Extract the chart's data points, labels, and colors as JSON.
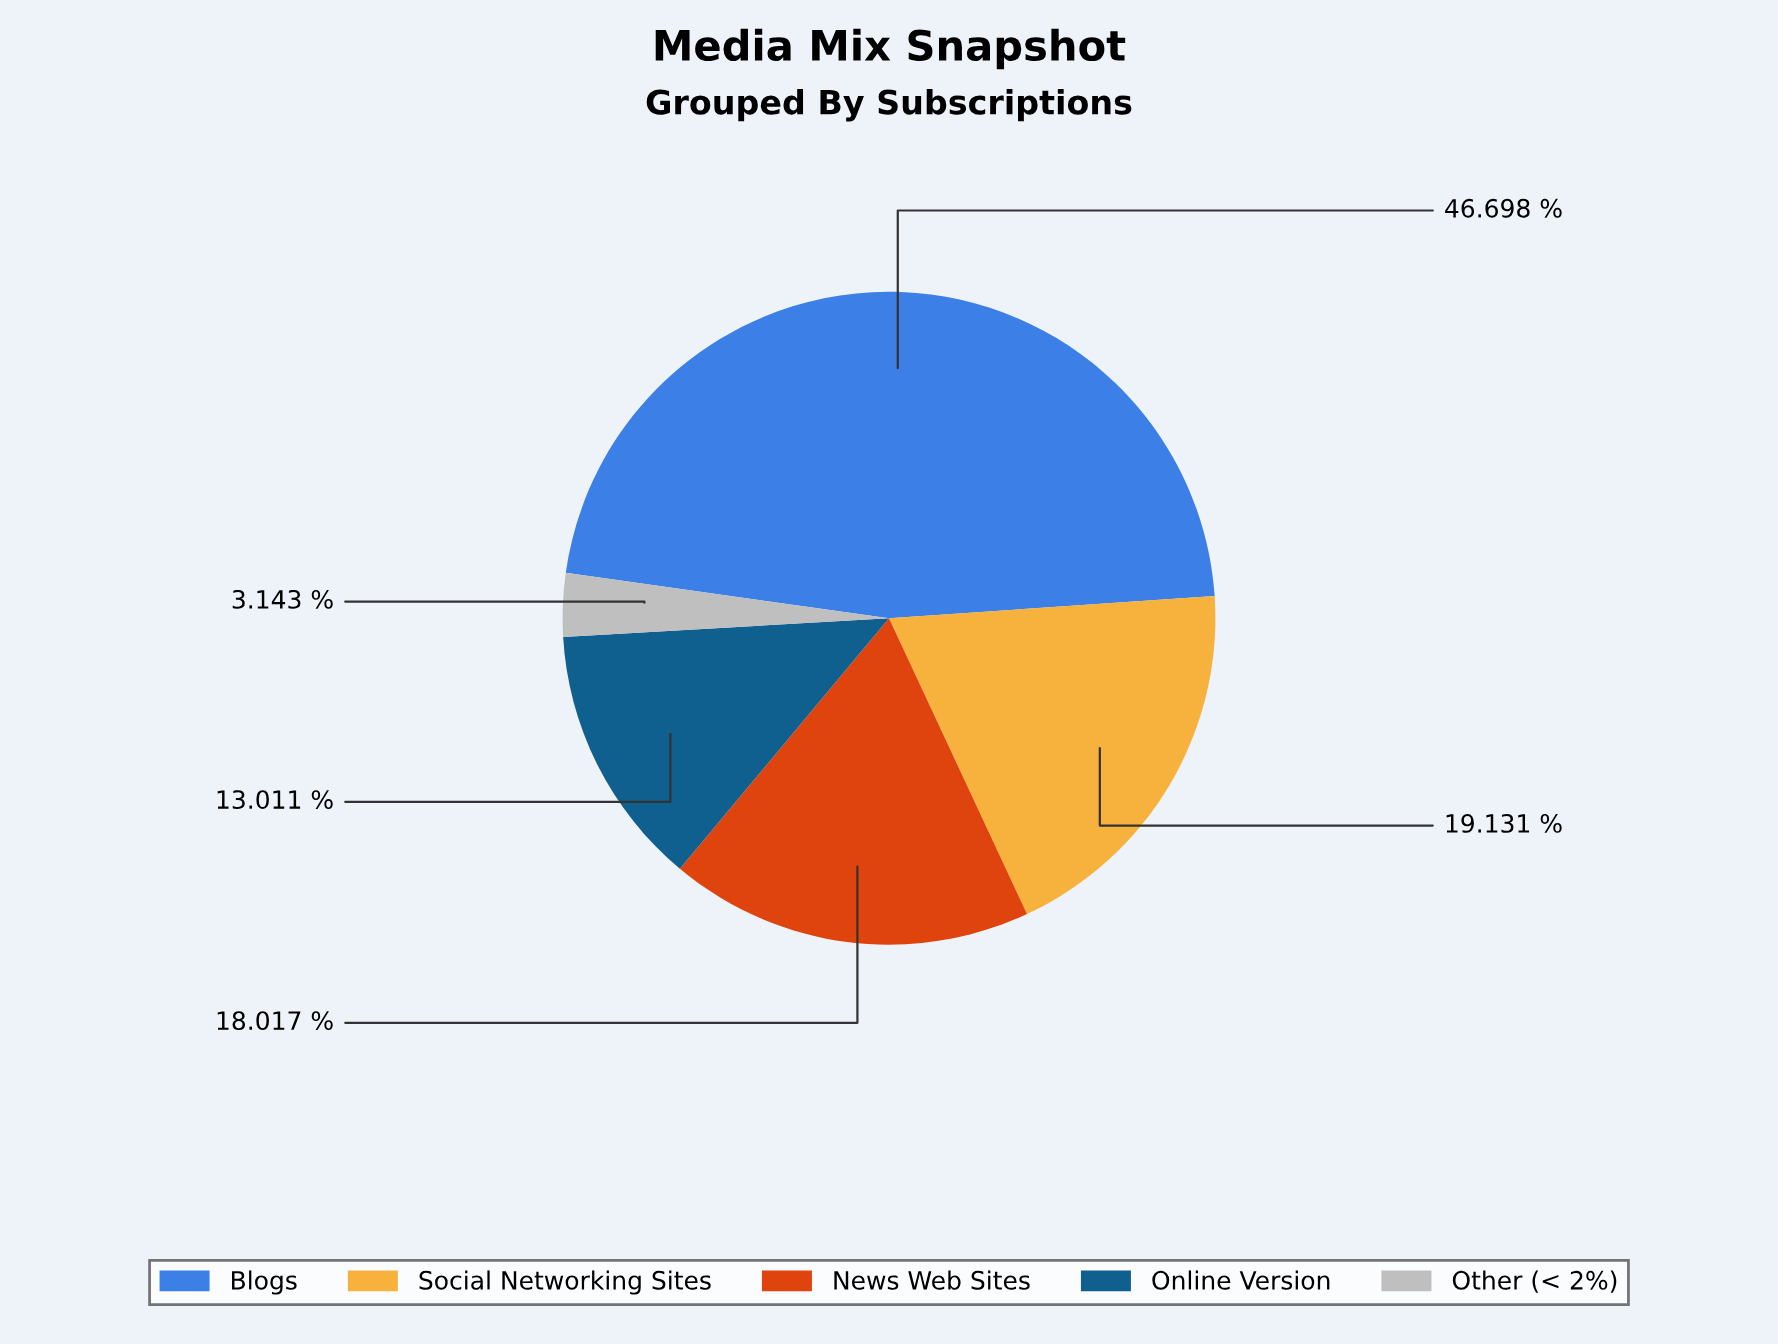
{
  "chart_data": {
    "type": "pie",
    "title": "Media Mix Snapshot",
    "subtitle": "Grouped By Subscriptions",
    "categories": [
      "Blogs",
      "Social Networking Sites",
      "News Web Sites",
      "Online Version",
      "Other (< 2%)"
    ],
    "values": [
      46.698,
      19.131,
      18.017,
      13.011,
      3.143
    ],
    "colors": [
      "#3c7fe6",
      "#f7b23e",
      "#e0440e",
      "#0f5f8f",
      "#bfbfbf"
    ],
    "value_labels": [
      "46.698 %",
      "19.131 %",
      "18.017 %",
      "13.011 %",
      "3.143 %"
    ],
    "legend": "bottom"
  }
}
